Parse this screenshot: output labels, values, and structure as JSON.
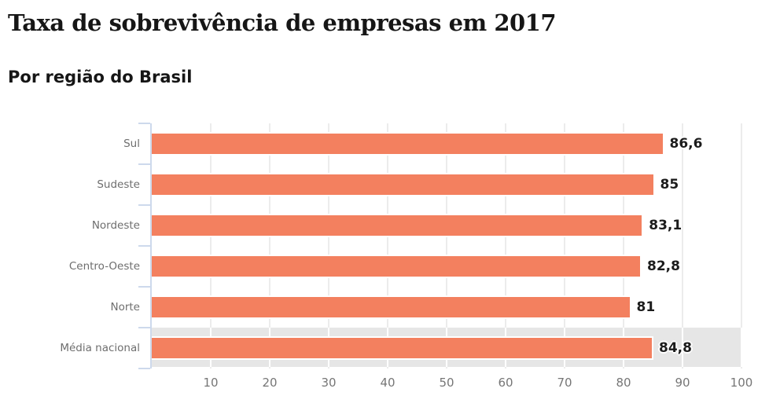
{
  "title": "Taxa de sobrevivência de empresas em 2017",
  "subtitle": "Por região do Brasil",
  "chart_data": {
    "type": "bar",
    "orientation": "horizontal",
    "title": "Taxa de sobrevivência de empresas em 2017",
    "subtitle": "Por região do Brasil",
    "categories": [
      "Sul",
      "Sudeste",
      "Nordeste",
      "Centro-Oeste",
      "Norte",
      "Média nacional"
    ],
    "values": [
      86.6,
      85,
      83.1,
      82.8,
      81,
      84.8
    ],
    "value_labels": [
      "86,6",
      "85",
      "83,1",
      "82,8",
      "81",
      "84,8"
    ],
    "highlight_category": "Média nacional",
    "xlim": [
      0,
      100
    ],
    "x_ticks": [
      10,
      20,
      30,
      40,
      50,
      60,
      70,
      80,
      90,
      100
    ],
    "x_tick_labels": [
      "10",
      "20",
      "30",
      "40",
      "50",
      "60",
      "70",
      "80",
      "90",
      "100"
    ],
    "grid": true,
    "legend": "none",
    "colors": {
      "bar": "#f3805f",
      "highlight_band": "#e6e6e6",
      "axis": "#cdd9ec",
      "gridline": "#ececec",
      "category_label": "#6e6e6e",
      "tick_label": "#767676",
      "value_label": "#1c1c1c",
      "title": "#161616",
      "background": "#ffffff"
    }
  }
}
